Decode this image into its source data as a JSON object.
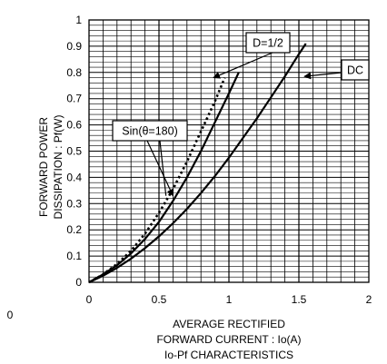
{
  "chart_data": {
    "type": "line",
    "title": "Io-Pf CHARACTERISTICS",
    "xlabel": [
      "AVERAGE RECTIFIED",
      "FORWARD CURRENT : Io(A)"
    ],
    "ylabel": [
      "FORWARD POWER",
      "DISSIPATION : Pf(W)"
    ],
    "xlim": [
      0,
      2
    ],
    "ylim": [
      0,
      1
    ],
    "x_ticks": [
      "0",
      "0.5",
      "1",
      "1.5",
      "2"
    ],
    "y_ticks": [
      "0",
      "0.1",
      "0.2",
      "0.3",
      "0.4",
      "0.5",
      "0.6",
      "0.7",
      "0.8",
      "0.9",
      "1"
    ],
    "grid": true,
    "stray_label": "0",
    "series": [
      {
        "name": "DC",
        "style": "solid",
        "color": "#000000",
        "points": [
          [
            0,
            0
          ],
          [
            0.1,
            0.025
          ],
          [
            0.2,
            0.055
          ],
          [
            0.3,
            0.09
          ],
          [
            0.4,
            0.13
          ],
          [
            0.5,
            0.175
          ],
          [
            0.6,
            0.225
          ],
          [
            0.7,
            0.28
          ],
          [
            0.8,
            0.34
          ],
          [
            0.9,
            0.405
          ],
          [
            1.0,
            0.475
          ],
          [
            1.1,
            0.55
          ],
          [
            1.2,
            0.625
          ],
          [
            1.3,
            0.705
          ],
          [
            1.4,
            0.785
          ],
          [
            1.5,
            0.87
          ],
          [
            1.55,
            0.91
          ]
        ]
      },
      {
        "name": "D=1/2",
        "style": "solid",
        "color": "#000000",
        "points": [
          [
            0,
            0
          ],
          [
            0.1,
            0.03
          ],
          [
            0.2,
            0.065
          ],
          [
            0.3,
            0.11
          ],
          [
            0.4,
            0.165
          ],
          [
            0.5,
            0.23
          ],
          [
            0.6,
            0.31
          ],
          [
            0.7,
            0.4
          ],
          [
            0.8,
            0.5
          ],
          [
            0.9,
            0.61
          ],
          [
            1.0,
            0.72
          ],
          [
            1.07,
            0.8
          ]
        ]
      },
      {
        "name": "Sin(θ=180)",
        "style": "dotted",
        "color": "#000000",
        "points": [
          [
            0,
            0
          ],
          [
            0.1,
            0.03
          ],
          [
            0.2,
            0.07
          ],
          [
            0.3,
            0.12
          ],
          [
            0.4,
            0.185
          ],
          [
            0.5,
            0.265
          ],
          [
            0.6,
            0.355
          ],
          [
            0.7,
            0.46
          ],
          [
            0.8,
            0.575
          ],
          [
            0.9,
            0.69
          ],
          [
            0.97,
            0.78
          ]
        ]
      }
    ],
    "annotations": [
      {
        "text": "D=1/2",
        "series": "D=1/2"
      },
      {
        "text": "DC",
        "series": "DC"
      },
      {
        "text": "Sin(θ=180)",
        "series": "Sin(θ=180)"
      }
    ]
  }
}
